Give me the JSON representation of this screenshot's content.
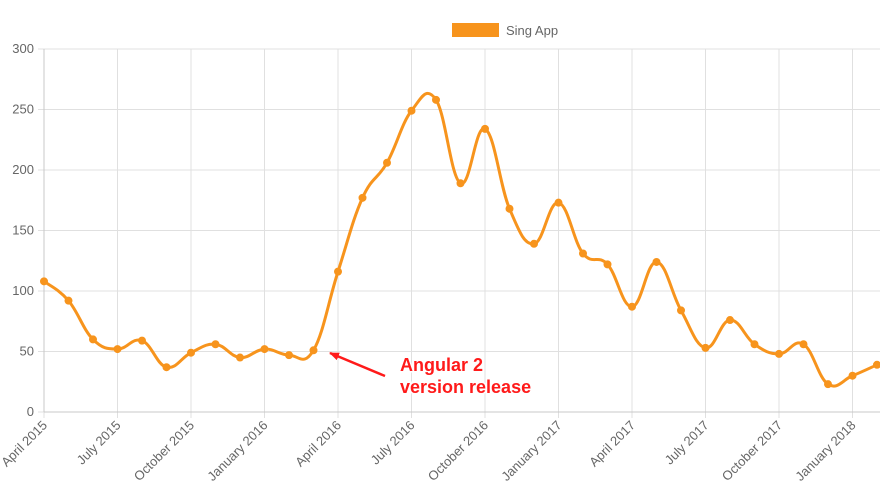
{
  "chart_data": {
    "type": "line",
    "legend": {
      "label": "Sing App",
      "position": "top"
    },
    "ylim": [
      0,
      300
    ],
    "yticks": [
      0,
      50,
      100,
      150,
      200,
      250,
      300
    ],
    "x_tick_labels": [
      "April 2015",
      "July 2015",
      "October 2015",
      "January 2016",
      "April 2016",
      "July 2016",
      "October 2016",
      "January 2017",
      "April 2017",
      "July 2017",
      "October 2017",
      "January 2018"
    ],
    "grid": true,
    "series": [
      {
        "name": "Sing App",
        "color": "#f7941d",
        "x": [
          "2015-04",
          "2015-05",
          "2015-06",
          "2015-07",
          "2015-08",
          "2015-09",
          "2015-10",
          "2015-11",
          "2015-12",
          "2016-01",
          "2016-02",
          "2016-03",
          "2016-04",
          "2016-05",
          "2016-06",
          "2016-07",
          "2016-08",
          "2016-09",
          "2016-10",
          "2016-11",
          "2016-12",
          "2017-01",
          "2017-02",
          "2017-03",
          "2017-04",
          "2017-05",
          "2017-06",
          "2017-07",
          "2017-08",
          "2017-09",
          "2017-10",
          "2017-11",
          "2017-12",
          "2018-01",
          "2018-02"
        ],
        "values": [
          108,
          92,
          60,
          52,
          59,
          37,
          49,
          56,
          45,
          52,
          47,
          51,
          116,
          177,
          206,
          249,
          258,
          189,
          234,
          168,
          139,
          173,
          131,
          122,
          87,
          124,
          84,
          53,
          76,
          56,
          48,
          56,
          23,
          30,
          39
        ]
      }
    ],
    "annotation": {
      "line1": "Angular 2",
      "line2": "version release",
      "color": "#ff1a1a"
    }
  }
}
